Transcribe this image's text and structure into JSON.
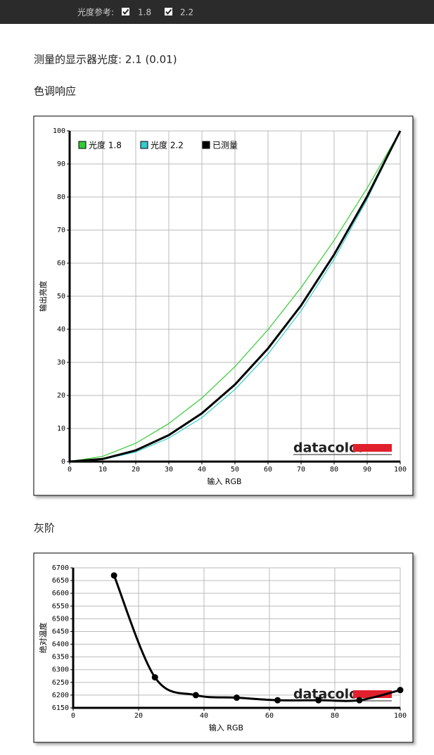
{
  "toolbar": {
    "label": "光度参考:",
    "options": [
      "1.8",
      "2.2"
    ]
  },
  "measured": "测量的显示器光度: 2.1 (0.01)",
  "chart_data": [
    {
      "type": "line",
      "title": "色调响应",
      "x_label": "输入 RGB",
      "y_label": "输出亮度",
      "watermark": "datacolor",
      "x": [
        0,
        10,
        20,
        30,
        40,
        50,
        60,
        70,
        80,
        90,
        100
      ],
      "xlim": [
        0,
        100
      ],
      "ylim": [
        0,
        100
      ],
      "xticks": [
        0,
        10,
        20,
        30,
        40,
        50,
        60,
        70,
        80,
        90,
        100
      ],
      "yticks": [
        0,
        10,
        20,
        30,
        40,
        50,
        60,
        70,
        80,
        90,
        100
      ],
      "grid": true,
      "legend": "top-left",
      "series": [
        {
          "name": "光度 1.8",
          "color": "#33cc33",
          "values": [
            0,
            1.58,
            5.54,
            11.5,
            19.2,
            28.7,
            39.9,
            52.6,
            66.9,
            82.7,
            100
          ]
        },
        {
          "name": "光度 2.2",
          "color": "#33cccc",
          "values": [
            0,
            0.63,
            2.9,
            7.1,
            13.3,
            21.8,
            32.5,
            45.6,
            61.2,
            79.3,
            100
          ]
        },
        {
          "name": "已测量",
          "color": "#000000",
          "values": [
            0,
            0.79,
            3.4,
            8.0,
            14.6,
            23.3,
            34.2,
            47.2,
            62.6,
            80.2,
            100
          ]
        }
      ]
    },
    {
      "type": "line",
      "title": "灰阶",
      "x_label": "输入 RGB",
      "y_label": "绝对温度",
      "watermark": "datacolor",
      "x": [
        12.5,
        25,
        37.5,
        50,
        62.5,
        75,
        87.5,
        100
      ],
      "values": [
        6670,
        6270,
        6200,
        6190,
        6180,
        6180,
        6180,
        6220
      ],
      "color": "#000000",
      "smooth": true,
      "markers": true,
      "xlim": [
        0,
        100
      ],
      "ylim": [
        6150,
        6700
      ],
      "xticks": [
        0,
        20,
        40,
        60,
        80,
        100
      ],
      "yticks": [
        6150,
        6200,
        6250,
        6300,
        6350,
        6400,
        6450,
        6500,
        6550,
        6600,
        6650,
        6700
      ],
      "grid": true
    }
  ]
}
